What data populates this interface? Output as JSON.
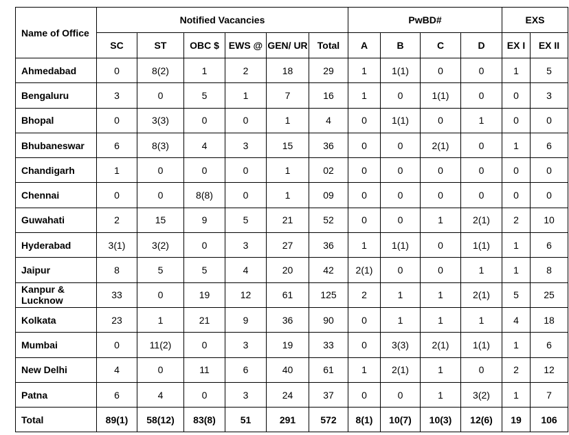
{
  "header": {
    "name_col": "Name of Office",
    "groups": [
      "Notified Vacancies",
      "PwBD#",
      "EXS"
    ],
    "columns": [
      "SC",
      "ST",
      "OBC $",
      "EWS @",
      "GEN/ UR",
      "Total",
      "A",
      "B",
      "C",
      "D",
      "EX I",
      "EX II"
    ]
  },
  "rows": [
    {
      "office": "Ahmedabad",
      "values": [
        "0",
        "8(2)",
        "1",
        "2",
        "18",
        "29",
        "1",
        "1(1)",
        "0",
        "0",
        "1",
        "5"
      ]
    },
    {
      "office": "Bengaluru",
      "values": [
        "3",
        "0",
        "5",
        "1",
        "7",
        "16",
        "1",
        "0",
        "1(1)",
        "0",
        "0",
        "3"
      ]
    },
    {
      "office": "Bhopal",
      "values": [
        "0",
        "3(3)",
        "0",
        "0",
        "1",
        "4",
        "0",
        "1(1)",
        "0",
        "1",
        "0",
        "0"
      ]
    },
    {
      "office": "Bhubaneswar",
      "values": [
        "6",
        "8(3)",
        "4",
        "3",
        "15",
        "36",
        "0",
        "0",
        "2(1)",
        "0",
        "1",
        "6"
      ]
    },
    {
      "office": "Chandigarh",
      "values": [
        "1",
        "0",
        "0",
        "0",
        "1",
        "02",
        "0",
        "0",
        "0",
        "0",
        "0",
        "0"
      ]
    },
    {
      "office": "Chennai",
      "values": [
        "0",
        "0",
        "8(8)",
        "0",
        "1",
        "09",
        "0",
        "0",
        "0",
        "0",
        "0",
        "0"
      ]
    },
    {
      "office": "Guwahati",
      "values": [
        "2",
        "15",
        "9",
        "5",
        "21",
        "52",
        "0",
        "0",
        "1",
        "2(1)",
        "2",
        "10"
      ]
    },
    {
      "office": "Hyderabad",
      "values": [
        "3(1)",
        "3(2)",
        "0",
        "3",
        "27",
        "36",
        "1",
        "1(1)",
        "0",
        "1(1)",
        "1",
        "6"
      ]
    },
    {
      "office": "Jaipur",
      "values": [
        "8",
        "5",
        "5",
        "4",
        "20",
        "42",
        "2(1)",
        "0",
        "0",
        "1",
        "1",
        "8"
      ]
    },
    {
      "office": "Kanpur & Lucknow",
      "values": [
        "33",
        "0",
        "19",
        "12",
        "61",
        "125",
        "2",
        "1",
        "1",
        "2(1)",
        "5",
        "25"
      ]
    },
    {
      "office": "Kolkata",
      "values": [
        "23",
        "1",
        "21",
        "9",
        "36",
        "90",
        "0",
        "1",
        "1",
        "1",
        "4",
        "18"
      ]
    },
    {
      "office": "Mumbai",
      "values": [
        "0",
        "11(2)",
        "0",
        "3",
        "19",
        "33",
        "0",
        "3(3)",
        "2(1)",
        "1(1)",
        "1",
        "6"
      ]
    },
    {
      "office": "New Delhi",
      "values": [
        "4",
        "0",
        "11",
        "6",
        "40",
        "61",
        "1",
        "2(1)",
        "1",
        "0",
        "2",
        "12"
      ]
    },
    {
      "office": "Patna",
      "values": [
        "6",
        "4",
        "0",
        "3",
        "24",
        "37",
        "0",
        "0",
        "1",
        "3(2)",
        "1",
        "7"
      ]
    }
  ],
  "total": {
    "label": "Total",
    "values": [
      "89(1)",
      "58(12)",
      "83(8)",
      "51",
      "291",
      "572",
      "8(1)",
      "10(7)",
      "10(3)",
      "12(6)",
      "19",
      "106"
    ]
  }
}
